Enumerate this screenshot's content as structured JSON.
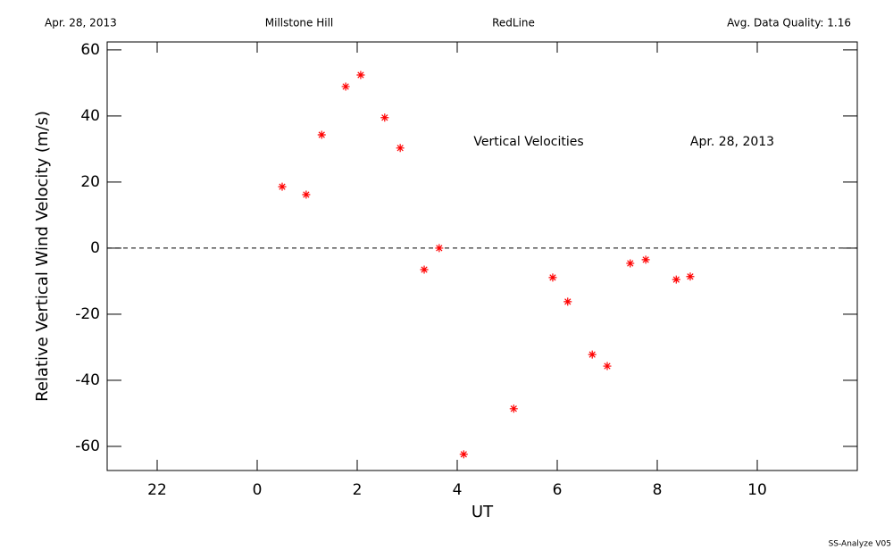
{
  "chart_data": {
    "type": "scatter",
    "header": [
      "Apr. 28, 2013",
      "Millstone Hill",
      "RedLine",
      "Avg. Data Quality: 1.16"
    ],
    "annotations": [
      "Vertical Velocities",
      "Apr. 28, 2013"
    ],
    "xlabel": "UT",
    "ylabel": "Relative Vertical Wind Velocity (m/s)",
    "footer": "SS-Analyze V05",
    "xlim": [
      -3,
      12
    ],
    "ylim": [
      -67.3,
      62.4
    ],
    "xticks": [
      {
        "value": -2,
        "label": "22"
      },
      0,
      2,
      4,
      6,
      8,
      10
    ],
    "yticks": [
      -60,
      -40,
      -20,
      0,
      20,
      40,
      60
    ],
    "reference_line": 0,
    "color": "#ff0000",
    "x": [
      0.5,
      0.98,
      1.29,
      1.77,
      2.07,
      2.55,
      2.86,
      3.34,
      3.64,
      4.13,
      5.13,
      5.91,
      6.21,
      6.7,
      7.0,
      7.46,
      7.77,
      8.38,
      8.66
    ],
    "values": [
      18.6,
      16.2,
      34.3,
      48.9,
      52.4,
      39.5,
      30.3,
      -6.5,
      0,
      -62.4,
      -48.6,
      -8.9,
      -16.2,
      -32.2,
      -35.7,
      -4.6,
      -3.5,
      -9.5,
      -8.6
    ]
  }
}
